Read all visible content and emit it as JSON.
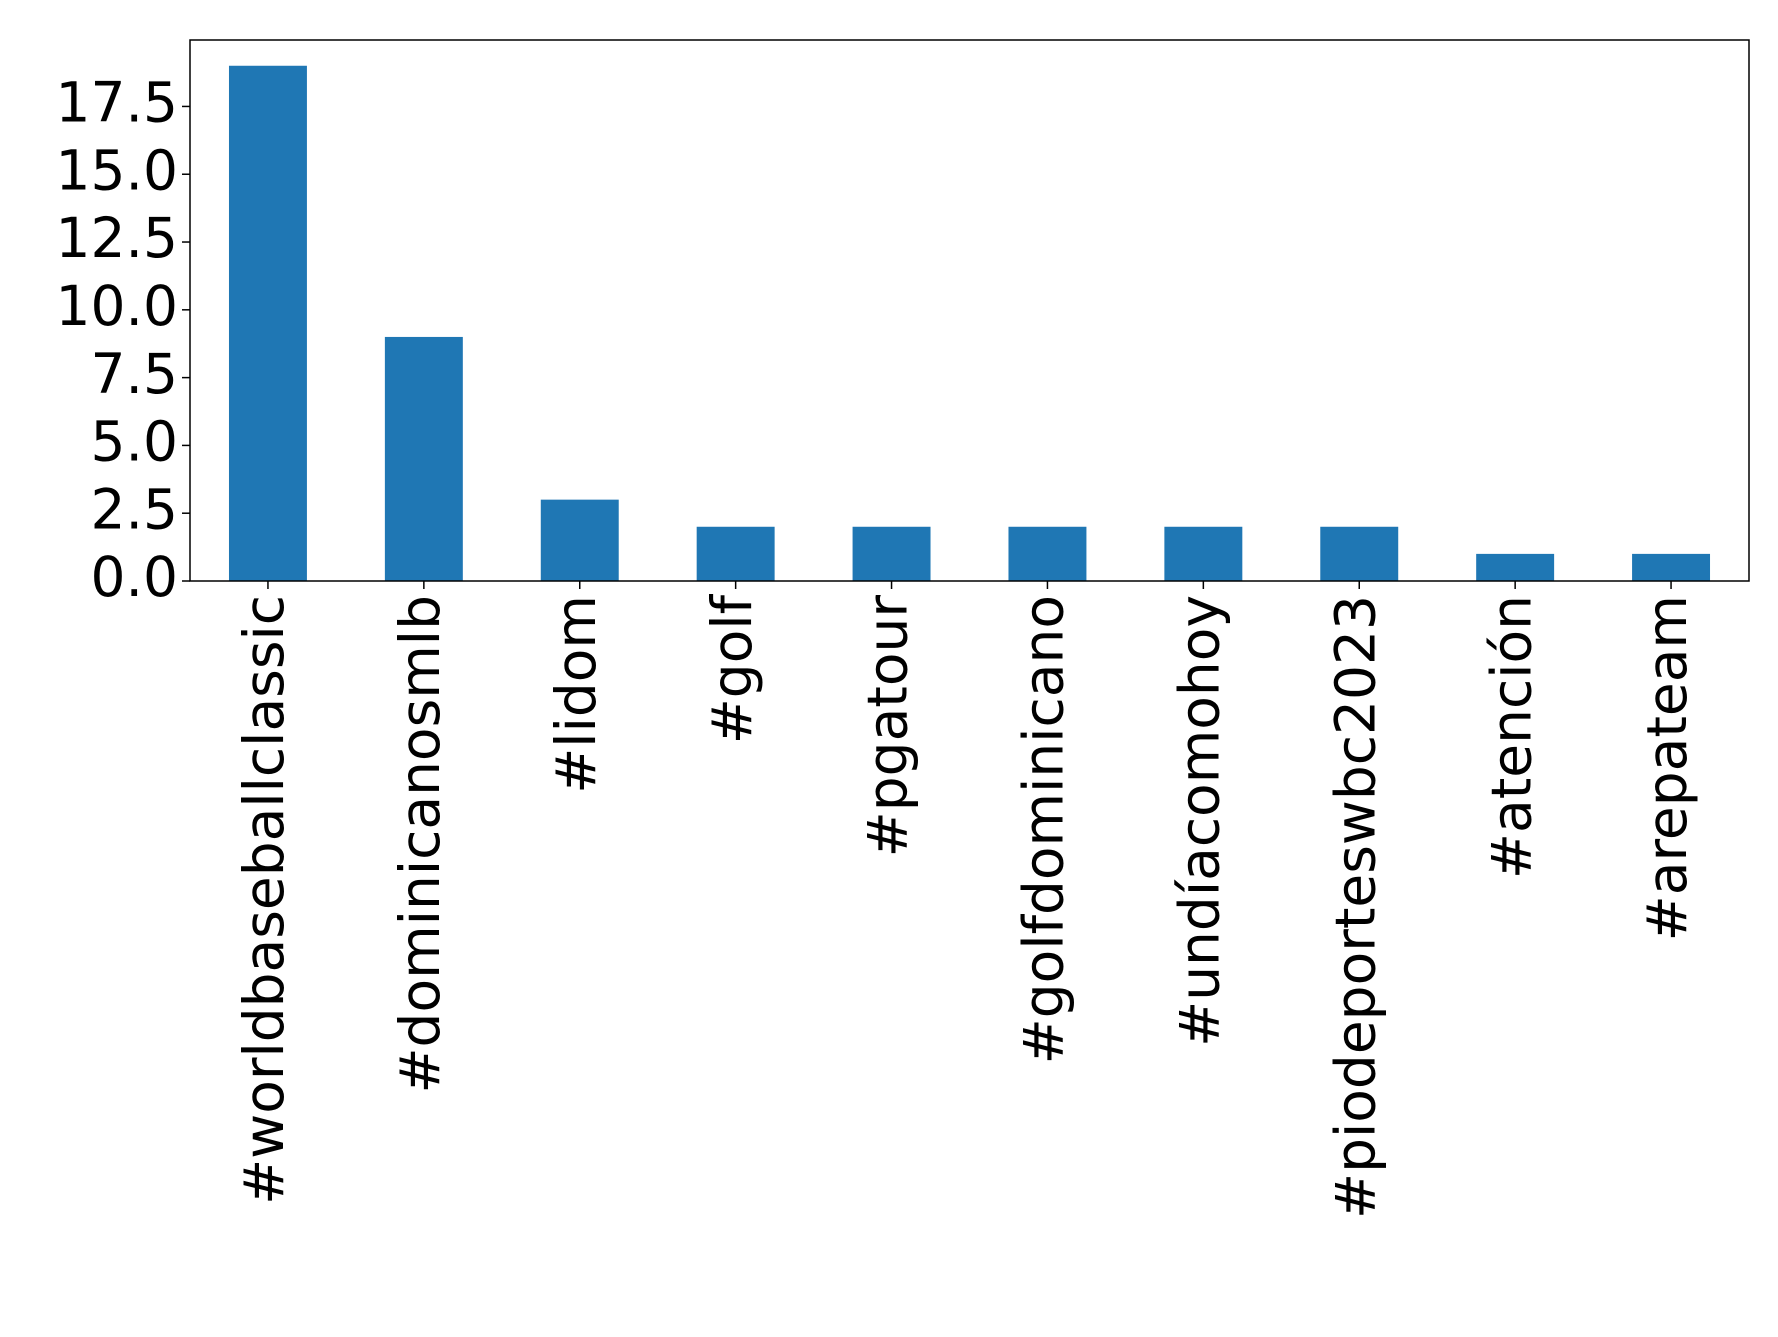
{
  "chart_data": {
    "type": "bar",
    "categories": [
      "#worldbaseballclassic",
      "#dominicanosmlb",
      "#lidom",
      "#golf",
      "#pgatour",
      "#golfdominicano",
      "#undíacomohoy",
      "#piodeporteswbc2023",
      "#atención",
      "#arepateam"
    ],
    "values": [
      19,
      9,
      3,
      2,
      2,
      2,
      2,
      2,
      1,
      1
    ],
    "color": "#1f77b4",
    "ylim": [
      0,
      19.95
    ],
    "yticks": [
      {
        "value": 0,
        "label": "0.0"
      },
      2.5,
      {
        "value": 5,
        "label": "5.0"
      },
      7.5,
      {
        "value": 10,
        "label": "10.0"
      },
      12.5,
      {
        "value": 15,
        "label": "15.0"
      },
      17.5
    ],
    "grid": false
  }
}
